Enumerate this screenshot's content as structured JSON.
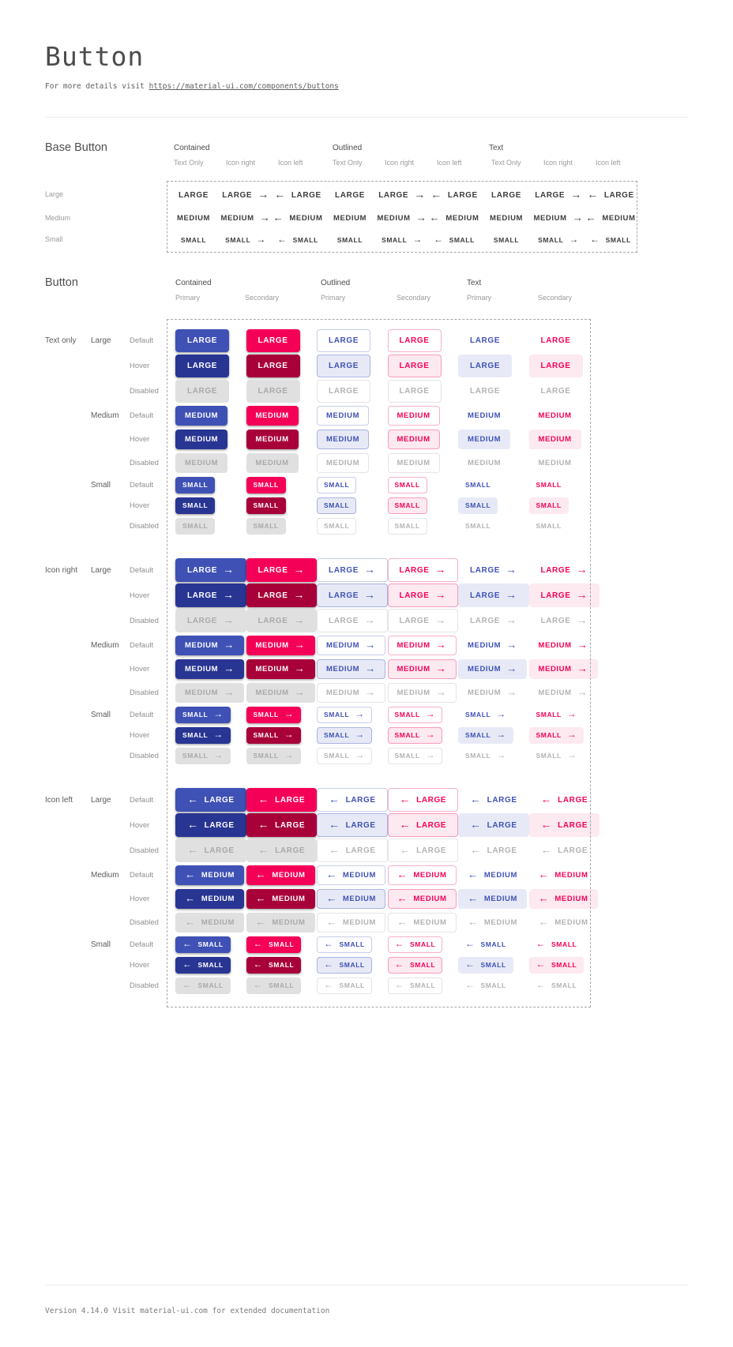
{
  "page": {
    "title": "Button",
    "subtitle_prefix": "For more details visit ",
    "subtitle_link": "https://material-ui.com/components/buttons"
  },
  "base_section": {
    "heading": "Base Button",
    "groups": [
      "Contained",
      "Outlined",
      "Text"
    ],
    "subcolumns": [
      "Text Only",
      "Icon right",
      "Icon left"
    ],
    "rows": [
      {
        "label": "Large",
        "text": "LARGE",
        "size": "large"
      },
      {
        "label": "Medium",
        "text": "MEDIUM",
        "size": "medium"
      },
      {
        "label": "Small",
        "text": "SMALL",
        "size": "small"
      }
    ]
  },
  "button_section": {
    "heading": "Button",
    "groups": [
      "Contained",
      "Outlined",
      "Text"
    ],
    "subcolumns": [
      "Primary",
      "Secondary"
    ],
    "icon_groups": [
      {
        "label": "Text only",
        "icon": "none"
      },
      {
        "label": "Icon right",
        "icon": "right"
      },
      {
        "label": "Icon left",
        "icon": "left"
      }
    ],
    "sizes": [
      "Large",
      "Medium",
      "Small"
    ],
    "size_texts": {
      "Large": "LARGE",
      "Medium": "MEDIUM",
      "Small": "SMALL"
    },
    "states": [
      "Default",
      "Hover",
      "Disabled"
    ],
    "variants": [
      {
        "variant": "contained",
        "color": "primary"
      },
      {
        "variant": "contained",
        "color": "secondary"
      },
      {
        "variant": "outlined",
        "color": "primary"
      },
      {
        "variant": "outlined",
        "color": "secondary"
      },
      {
        "variant": "text",
        "color": "primary"
      },
      {
        "variant": "text",
        "color": "secondary"
      }
    ]
  },
  "icons": {
    "arrow_right": "→",
    "arrow_left": "←"
  },
  "colors": {
    "primary": "#3f51b5",
    "primary_hover": "#283593",
    "secondary": "#f50057",
    "secondary_hover": "#a80039",
    "disabled_bg": "#e0e0e0",
    "disabled_text": "#a9a9a9",
    "primary_tint": "#e7eaf6",
    "secondary_tint": "#fde9f0"
  },
  "footer": {
    "text": "Version 4.14.0  Visit material-ui.com for extended documentation"
  }
}
